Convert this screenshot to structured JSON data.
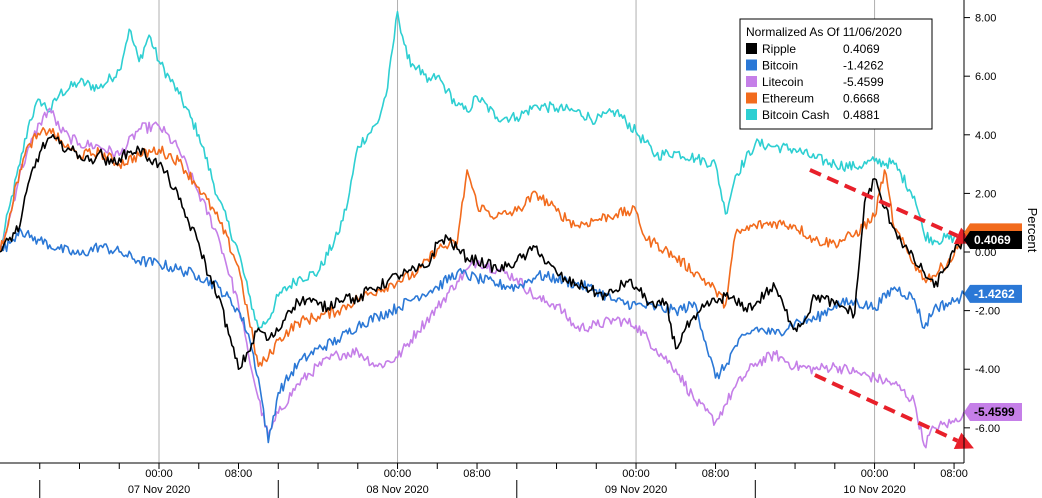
{
  "chart_data": {
    "type": "line",
    "title": "",
    "ylabel": "Percent",
    "ylim": [
      -7.2,
      8.6
    ],
    "y_ticks": [
      {
        "value": 8,
        "label": "8.00"
      },
      {
        "value": 6,
        "label": "6.00"
      },
      {
        "value": 4,
        "label": "4.00"
      },
      {
        "value": 2,
        "label": "2.00"
      },
      {
        "value": 0,
        "label": "0.00"
      },
      {
        "value": -2,
        "label": "-2.00"
      },
      {
        "value": -4,
        "label": "-4.00"
      },
      {
        "value": -6,
        "label": "-6.00"
      }
    ],
    "xlim": [
      -4,
      93
    ],
    "x_time_ticks": [
      {
        "t": 12,
        "label": "00:00"
      },
      {
        "t": 20,
        "label": "08:00"
      },
      {
        "t": 36,
        "label": "00:00"
      },
      {
        "t": 44,
        "label": "08:00"
      },
      {
        "t": 60,
        "label": "00:00"
      },
      {
        "t": 68,
        "label": "08:00"
      },
      {
        "t": 84,
        "label": "00:00"
      },
      {
        "t": 92,
        "label": "08:00"
      }
    ],
    "x_date_labels": [
      {
        "t": 12,
        "label": "07 Nov 2020"
      },
      {
        "t": 36,
        "label": "08 Nov 2020"
      },
      {
        "t": 60,
        "label": "09 Nov 2020"
      },
      {
        "t": 84,
        "label": "10 Nov 2020"
      }
    ],
    "x_gridlines": [
      12,
      36,
      60,
      84
    ],
    "legend": {
      "title": "Normalized As Of 11/06/2020",
      "position": "top-right"
    },
    "series": [
      {
        "name": "Ripple",
        "last": "0.4069",
        "color": "#000000",
        "t": [
          -4,
          -2,
          -1,
          0,
          1,
          2,
          3,
          4,
          5,
          6,
          7,
          8,
          9,
          10,
          11,
          12,
          13,
          14,
          15,
          16,
          17,
          18,
          19,
          20,
          21,
          22,
          23,
          24,
          25,
          26,
          27,
          28,
          29,
          30,
          31,
          32,
          33,
          34,
          35,
          36,
          37,
          38,
          39,
          40,
          41,
          42,
          43,
          44,
          45,
          46,
          47,
          48,
          49,
          50,
          51,
          52,
          53,
          54,
          55,
          56,
          57,
          58,
          59,
          60,
          61,
          62,
          63,
          64,
          65,
          66,
          67,
          68,
          69,
          70,
          71,
          72,
          73,
          74,
          75,
          76,
          77,
          78,
          79,
          80,
          81,
          82,
          83,
          84,
          85,
          86,
          87,
          88,
          89,
          90,
          91,
          92,
          93
        ],
        "values": [
          0,
          0.9,
          2.5,
          3.4,
          3.9,
          3.7,
          3.5,
          3.3,
          3.1,
          3.4,
          3.0,
          3.2,
          3.4,
          3.5,
          3.2,
          3.0,
          2.5,
          1.8,
          1.0,
          0.3,
          -0.8,
          -1.5,
          -2.8,
          -4.0,
          -3.4,
          -2.6,
          -3.0,
          -2.7,
          -2.0,
          -1.7,
          -1.6,
          -1.8,
          -1.9,
          -1.6,
          -1.5,
          -1.7,
          -1.3,
          -1.2,
          -1.0,
          -0.8,
          -0.7,
          -0.6,
          -0.5,
          0.3,
          0.5,
          0.1,
          -0.2,
          -0.3,
          -0.4,
          -0.6,
          -0.5,
          -0.3,
          -0.1,
          0.2,
          -0.4,
          -0.7,
          -1.0,
          -1.1,
          -1.2,
          -1.4,
          -1.5,
          -1.3,
          -1.0,
          -1.2,
          -1.6,
          -1.9,
          -1.7,
          -3.3,
          -2.6,
          -2.3,
          -1.8,
          -1.7,
          -1.5,
          -1.7,
          -1.9,
          -1.8,
          -1.4,
          -1.2,
          -2.0,
          -2.6,
          -2.3,
          -1.5,
          -1.6,
          -1.8,
          -1.9,
          -2.1,
          1.7,
          2.5,
          1.5,
          0.8,
          0.2,
          -0.3,
          -0.7,
          -1.2,
          -0.6,
          0.0,
          0.41
        ]
      },
      {
        "name": "Bitcoin",
        "last": "-1.4262",
        "color": "#2b78d6",
        "t": [
          -4,
          -3,
          -2,
          -1,
          0,
          2,
          4,
          6,
          8,
          10,
          12,
          14,
          16,
          18,
          20,
          21,
          22,
          23,
          24,
          26,
          28,
          30,
          32,
          34,
          36,
          38,
          40,
          42,
          44,
          46,
          48,
          50,
          52,
          54,
          56,
          58,
          60,
          62,
          64,
          66,
          68,
          69,
          70,
          72,
          74,
          76,
          78,
          80,
          82,
          84,
          86,
          88,
          89,
          90,
          92,
          93
        ],
        "values": [
          0,
          0.3,
          0.8,
          0.5,
          0.4,
          0.1,
          -0.1,
          0.2,
          0.0,
          -0.3,
          -0.4,
          -0.6,
          -0.8,
          -1.2,
          -2.0,
          -2.8,
          -4.3,
          -6.5,
          -4.8,
          -3.8,
          -3.3,
          -3.0,
          -2.5,
          -2.2,
          -1.9,
          -1.5,
          -1.2,
          -0.7,
          -0.9,
          -1.1,
          -1.2,
          -0.8,
          -0.9,
          -1.1,
          -1.3,
          -1.7,
          -1.8,
          -1.9,
          -2.0,
          -1.8,
          -4.3,
          -3.9,
          -3.2,
          -2.6,
          -2.8,
          -2.4,
          -2.3,
          -1.8,
          -1.7,
          -1.9,
          -1.2,
          -1.6,
          -2.6,
          -1.9,
          -1.7,
          -1.43
        ]
      },
      {
        "name": "Litecoin",
        "last": "-5.4599",
        "color": "#c57fe8",
        "t": [
          -4,
          -3,
          -2,
          -1,
          0,
          1,
          2,
          3,
          4,
          6,
          8,
          10,
          12,
          14,
          16,
          18,
          20,
          21,
          22,
          23,
          24,
          26,
          28,
          30,
          32,
          34,
          36,
          38,
          40,
          42,
          44,
          46,
          48,
          50,
          52,
          54,
          56,
          58,
          60,
          62,
          64,
          66,
          68,
          69,
          70,
          72,
          74,
          76,
          78,
          80,
          82,
          84,
          86,
          88,
          89,
          90,
          92,
          93
        ],
        "values": [
          0,
          1.2,
          2.7,
          3.6,
          4.4,
          4.9,
          4.2,
          3.9,
          3.7,
          3.6,
          3.3,
          4.2,
          4.3,
          3.5,
          2.0,
          0.5,
          -1.8,
          -3.5,
          -5.0,
          -6.3,
          -5.5,
          -4.5,
          -3.9,
          -3.5,
          -3.4,
          -3.9,
          -3.6,
          -2.7,
          -1.9,
          -1.0,
          -0.3,
          -0.6,
          -0.9,
          -1.6,
          -1.8,
          -2.6,
          -2.5,
          -2.3,
          -2.5,
          -3.3,
          -4.0,
          -5.1,
          -5.8,
          -5.2,
          -4.6,
          -3.8,
          -3.5,
          -3.9,
          -4.0,
          -3.9,
          -4.1,
          -4.3,
          -4.5,
          -5.1,
          -6.6,
          -6.0,
          -5.8,
          -5.46
        ]
      },
      {
        "name": "Ethereum",
        "last": "0.6668",
        "color": "#f26b1d",
        "t": [
          -4,
          -3,
          -2,
          -1,
          0,
          1,
          2,
          3,
          4,
          6,
          8,
          10,
          12,
          14,
          16,
          18,
          20,
          21,
          22,
          23,
          24,
          26,
          28,
          30,
          32,
          34,
          36,
          38,
          40,
          42,
          43,
          44,
          46,
          48,
          50,
          52,
          54,
          56,
          58,
          60,
          61,
          62,
          64,
          66,
          68,
          69,
          70,
          72,
          74,
          76,
          78,
          80,
          82,
          84,
          85,
          86,
          88,
          89,
          90,
          92,
          93
        ],
        "values": [
          0,
          1.3,
          2.8,
          3.7,
          4.0,
          4.2,
          3.8,
          3.5,
          3.3,
          3.4,
          3.0,
          3.3,
          3.5,
          3.1,
          2.2,
          1.1,
          -0.5,
          -2.2,
          -3.9,
          -3.6,
          -3.0,
          -2.4,
          -2.2,
          -2.0,
          -1.6,
          -1.3,
          -1.0,
          -0.7,
          0.1,
          0.3,
          2.8,
          1.6,
          1.2,
          1.4,
          2.0,
          1.4,
          0.9,
          1.1,
          1.3,
          1.4,
          0.4,
          0.3,
          -0.2,
          -0.7,
          -1.3,
          -1.8,
          0.6,
          0.9,
          1.0,
          0.9,
          0.4,
          0.3,
          0.6,
          1.2,
          2.8,
          0.8,
          -0.4,
          -0.9,
          -0.8,
          -0.1,
          0.67
        ]
      },
      {
        "name": "Bitcoin Cash",
        "last": "0.4881",
        "color": "#2ecfd2",
        "t": [
          -4,
          -3,
          -2,
          -1,
          0,
          1,
          2,
          4,
          6,
          8,
          9,
          10,
          11,
          12,
          14,
          16,
          18,
          20,
          21,
          22,
          23,
          24,
          26,
          28,
          30,
          31,
          32,
          34,
          35,
          36,
          37,
          38,
          39,
          40,
          41,
          42,
          43,
          44,
          46,
          48,
          50,
          52,
          54,
          56,
          58,
          60,
          62,
          64,
          66,
          68,
          69,
          70,
          72,
          74,
          76,
          78,
          80,
          82,
          84,
          86,
          88,
          89,
          90,
          92,
          93
        ],
        "values": [
          0,
          1.6,
          3.0,
          4.5,
          5.2,
          4.8,
          5.4,
          5.8,
          5.6,
          6.2,
          7.6,
          6.5,
          7.4,
          6.5,
          5.4,
          4.0,
          1.8,
          0.0,
          -1.4,
          -2.6,
          -2.3,
          -1.5,
          -0.9,
          -0.7,
          0.6,
          1.7,
          3.6,
          4.4,
          5.6,
          8.2,
          6.6,
          6.3,
          5.8,
          6.0,
          5.5,
          5.0,
          4.8,
          5.3,
          4.6,
          4.6,
          5.0,
          4.9,
          4.8,
          4.5,
          4.8,
          4.1,
          3.3,
          3.4,
          3.2,
          3.0,
          1.3,
          2.6,
          3.7,
          3.6,
          3.5,
          3.2,
          3.0,
          2.9,
          3.1,
          3.0,
          1.9,
          0.6,
          0.4,
          0.5,
          0.49
        ]
      }
    ],
    "annotations": [
      {
        "type": "arrow",
        "color": "#e8202a",
        "style": "dashed",
        "from": {
          "t": 77.5,
          "v": 2.8
        },
        "to": {
          "t": 94,
          "v": 0.3
        }
      },
      {
        "type": "arrow",
        "color": "#e8202a",
        "style": "dashed",
        "from": {
          "t": 78,
          "v": -4.2
        },
        "to": {
          "t": 94,
          "v": -6.7
        }
      }
    ]
  }
}
